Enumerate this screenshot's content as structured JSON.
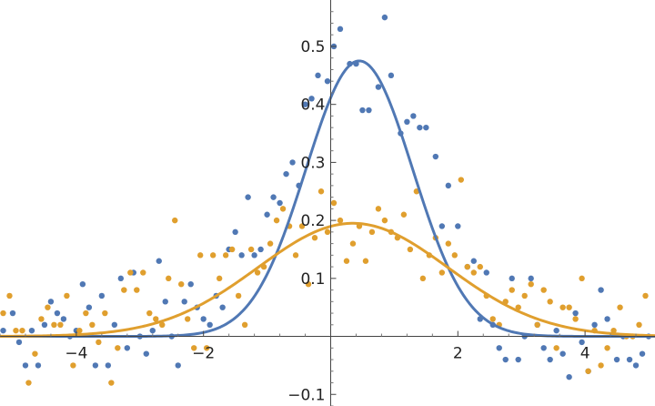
{
  "chart_data": {
    "type": "scatter",
    "title": "",
    "xlabel": "",
    "ylabel": "",
    "xlim": [
      -5.2,
      5.1
    ],
    "ylim": [
      -0.12,
      0.58
    ],
    "x_ticks": [
      {
        "value": -4,
        "label": "−4"
      },
      {
        "value": -2,
        "label": "−2"
      },
      {
        "value": 2,
        "label": "2"
      },
      {
        "value": 4,
        "label": "4"
      }
    ],
    "y_ticks": [
      {
        "value": -0.1,
        "label": "−0.1"
      },
      {
        "value": 0.1,
        "label": "0.1"
      },
      {
        "value": 0.2,
        "label": "0.2"
      },
      {
        "value": 0.3,
        "label": "0.3"
      },
      {
        "value": 0.4,
        "label": "0.4"
      },
      {
        "value": 0.5,
        "label": "0.5"
      }
    ],
    "grid": false,
    "series": [
      {
        "color": "#5078b4",
        "fit": {
          "type": "gaussian",
          "amplitude": 0.475,
          "mean": 0.45,
          "sigma": 0.84
        },
        "points": [
          [
            -5.15,
            0.01
          ],
          [
            -5.0,
            0.04
          ],
          [
            -4.9,
            -0.01
          ],
          [
            -4.8,
            -0.05
          ],
          [
            -4.7,
            0.01
          ],
          [
            -4.6,
            -0.05
          ],
          [
            -4.5,
            0.02
          ],
          [
            -4.4,
            0.06
          ],
          [
            -4.3,
            0.04
          ],
          [
            -4.2,
            0.03
          ],
          [
            -4.1,
            0.0
          ],
          [
            -4.0,
            0.01
          ],
          [
            -3.9,
            0.09
          ],
          [
            -3.8,
            0.05
          ],
          [
            -3.7,
            -0.05
          ],
          [
            -3.6,
            0.07
          ],
          [
            -3.5,
            -0.05
          ],
          [
            -3.4,
            0.02
          ],
          [
            -3.3,
            0.1
          ],
          [
            -3.2,
            -0.02
          ],
          [
            -3.1,
            0.11
          ],
          [
            -3.0,
            0.0
          ],
          [
            -2.9,
            -0.03
          ],
          [
            -2.8,
            0.01
          ],
          [
            -2.7,
            0.13
          ],
          [
            -2.6,
            0.06
          ],
          [
            -2.5,
            0.0
          ],
          [
            -2.4,
            -0.05
          ],
          [
            -2.3,
            0.06
          ],
          [
            -2.2,
            0.09
          ],
          [
            -2.1,
            0.05
          ],
          [
            -2.0,
            0.03
          ],
          [
            -1.9,
            0.02
          ],
          [
            -1.8,
            0.07
          ],
          [
            -1.7,
            0.05
          ],
          [
            -1.6,
            0.15
          ],
          [
            -1.5,
            0.18
          ],
          [
            -1.4,
            0.14
          ],
          [
            -1.3,
            0.24
          ],
          [
            -1.2,
            0.14
          ],
          [
            -1.1,
            0.15
          ],
          [
            -1.0,
            0.21
          ],
          [
            -0.9,
            0.24
          ],
          [
            -0.8,
            0.23
          ],
          [
            -0.7,
            0.28
          ],
          [
            -0.6,
            0.3
          ],
          [
            -0.5,
            0.26
          ],
          [
            -0.4,
            0.4
          ],
          [
            -0.3,
            0.41
          ],
          [
            -0.2,
            0.45
          ],
          [
            -0.05,
            0.44
          ],
          [
            0.05,
            0.5
          ],
          [
            0.15,
            0.53
          ],
          [
            0.3,
            0.47
          ],
          [
            0.4,
            0.47
          ],
          [
            0.5,
            0.39
          ],
          [
            0.6,
            0.39
          ],
          [
            0.75,
            0.43
          ],
          [
            0.85,
            0.55
          ],
          [
            0.95,
            0.45
          ],
          [
            1.1,
            0.35
          ],
          [
            1.2,
            0.37
          ],
          [
            1.3,
            0.38
          ],
          [
            1.4,
            0.36
          ],
          [
            1.5,
            0.36
          ],
          [
            1.65,
            0.31
          ],
          [
            1.75,
            0.19
          ],
          [
            1.85,
            0.26
          ],
          [
            2.0,
            0.19
          ],
          [
            2.15,
            0.12
          ],
          [
            2.25,
            0.13
          ],
          [
            2.35,
            0.03
          ],
          [
            2.45,
            0.11
          ],
          [
            2.55,
            0.02
          ],
          [
            2.65,
            -0.02
          ],
          [
            2.75,
            -0.04
          ],
          [
            2.85,
            0.1
          ],
          [
            2.95,
            -0.04
          ],
          [
            3.05,
            0.0
          ],
          [
            3.15,
            0.1
          ],
          [
            3.25,
            0.02
          ],
          [
            3.35,
            -0.02
          ],
          [
            3.45,
            -0.04
          ],
          [
            3.55,
            0.01
          ],
          [
            3.65,
            -0.03
          ],
          [
            3.75,
            -0.07
          ],
          [
            3.85,
            0.04
          ],
          [
            3.95,
            -0.01
          ],
          [
            4.05,
            -0.06
          ],
          [
            4.15,
            0.02
          ],
          [
            4.25,
            0.08
          ],
          [
            4.35,
            0.03
          ],
          [
            4.5,
            -0.04
          ],
          [
            4.6,
            0.0
          ],
          [
            4.7,
            -0.04
          ],
          [
            4.8,
            -0.05
          ],
          [
            4.9,
            -0.03
          ],
          [
            5.0,
            0.0
          ]
        ]
      },
      {
        "color": "#e09f2e",
        "fit": {
          "type": "gaussian",
          "amplitude": 0.195,
          "mean": 0.35,
          "sigma": 1.5
        },
        "points": [
          [
            -5.15,
            0.04
          ],
          [
            -5.05,
            0.07
          ],
          [
            -4.95,
            0.01
          ],
          [
            -4.85,
            0.01
          ],
          [
            -4.75,
            -0.08
          ],
          [
            -4.65,
            -0.03
          ],
          [
            -4.55,
            0.03
          ],
          [
            -4.45,
            0.05
          ],
          [
            -4.35,
            0.02
          ],
          [
            -4.25,
            0.02
          ],
          [
            -4.15,
            0.07
          ],
          [
            -4.05,
            -0.05
          ],
          [
            -3.95,
            0.01
          ],
          [
            -3.85,
            0.04
          ],
          [
            -3.75,
            0.02
          ],
          [
            -3.65,
            -0.01
          ],
          [
            -3.55,
            0.04
          ],
          [
            -3.45,
            -0.08
          ],
          [
            -3.35,
            -0.02
          ],
          [
            -3.25,
            0.08
          ],
          [
            -3.15,
            0.11
          ],
          [
            -3.05,
            0.08
          ],
          [
            -2.95,
            0.11
          ],
          [
            -2.85,
            0.04
          ],
          [
            -2.75,
            0.03
          ],
          [
            -2.65,
            0.02
          ],
          [
            -2.55,
            0.1
          ],
          [
            -2.45,
            0.2
          ],
          [
            -2.35,
            0.09
          ],
          [
            -2.25,
            0.03
          ],
          [
            -2.15,
            -0.02
          ],
          [
            -2.05,
            0.14
          ],
          [
            -1.95,
            -0.02
          ],
          [
            -1.85,
            0.14
          ],
          [
            -1.75,
            0.1
          ],
          [
            -1.65,
            0.14
          ],
          [
            -1.55,
            0.15
          ],
          [
            -1.45,
            0.07
          ],
          [
            -1.35,
            0.02
          ],
          [
            -1.25,
            0.15
          ],
          [
            -1.15,
            0.11
          ],
          [
            -1.05,
            0.12
          ],
          [
            -0.95,
            0.16
          ],
          [
            -0.85,
            0.2
          ],
          [
            -0.75,
            0.22
          ],
          [
            -0.65,
            0.19
          ],
          [
            -0.55,
            0.14
          ],
          [
            -0.45,
            0.19
          ],
          [
            -0.35,
            0.09
          ],
          [
            -0.25,
            0.17
          ],
          [
            -0.15,
            0.25
          ],
          [
            -0.05,
            0.18
          ],
          [
            0.05,
            0.23
          ],
          [
            0.15,
            0.2
          ],
          [
            0.25,
            0.13
          ],
          [
            0.35,
            0.16
          ],
          [
            0.45,
            0.19
          ],
          [
            0.55,
            0.13
          ],
          [
            0.65,
            0.18
          ],
          [
            0.75,
            0.22
          ],
          [
            0.85,
            0.2
          ],
          [
            0.95,
            0.18
          ],
          [
            1.05,
            0.17
          ],
          [
            1.15,
            0.21
          ],
          [
            1.25,
            0.15
          ],
          [
            1.35,
            0.25
          ],
          [
            1.45,
            0.1
          ],
          [
            1.55,
            0.14
          ],
          [
            1.65,
            0.17
          ],
          [
            1.75,
            0.11
          ],
          [
            1.85,
            0.16
          ],
          [
            1.95,
            0.14
          ],
          [
            2.05,
            0.27
          ],
          [
            2.15,
            0.12
          ],
          [
            2.25,
            0.11
          ],
          [
            2.35,
            0.12
          ],
          [
            2.45,
            0.07
          ],
          [
            2.55,
            0.03
          ],
          [
            2.65,
            0.02
          ],
          [
            2.75,
            0.06
          ],
          [
            2.85,
            0.08
          ],
          [
            2.95,
            0.05
          ],
          [
            3.05,
            0.07
          ],
          [
            3.15,
            0.09
          ],
          [
            3.25,
            0.02
          ],
          [
            3.35,
            0.08
          ],
          [
            3.45,
            0.06
          ],
          [
            3.55,
            -0.02
          ],
          [
            3.65,
            0.05
          ],
          [
            3.75,
            0.05
          ],
          [
            3.85,
            0.03
          ],
          [
            3.95,
            0.1
          ],
          [
            4.05,
            -0.06
          ],
          [
            4.15,
            0.01
          ],
          [
            4.25,
            -0.05
          ],
          [
            4.35,
            -0.02
          ],
          [
            4.45,
            0.01
          ],
          [
            4.55,
            0.05
          ],
          [
            4.65,
            0.0
          ],
          [
            4.75,
            0.0
          ],
          [
            4.85,
            0.02
          ],
          [
            4.95,
            0.07
          ]
        ]
      }
    ]
  }
}
